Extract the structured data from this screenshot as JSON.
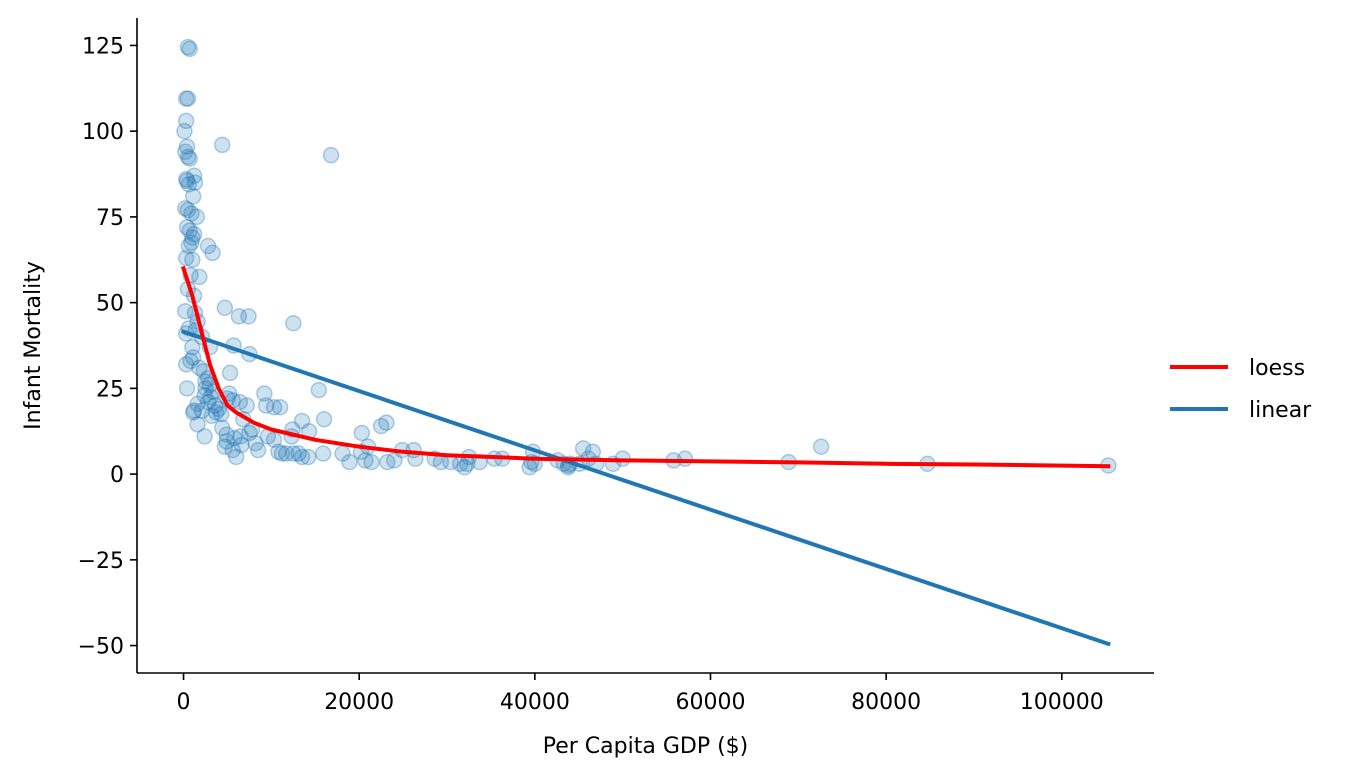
{
  "chart_data": {
    "type": "scatter",
    "xlabel": "Per Capita GDP ($)",
    "ylabel": "Infant Mortality",
    "xlim": [
      -5300,
      110500
    ],
    "ylim": [
      -58,
      133
    ],
    "xticks": [
      0,
      20000,
      40000,
      60000,
      80000,
      100000
    ],
    "xtick_labels": [
      "0",
      "20000",
      "40000",
      "60000",
      "80000",
      "100000"
    ],
    "yticks": [
      -50,
      -25,
      0,
      25,
      50,
      75,
      100,
      125
    ],
    "ytick_labels": [
      "−50",
      "−25",
      "0",
      "25",
      "50",
      "75",
      "100",
      "125"
    ],
    "grid": false,
    "legend_position": "right",
    "colors": {
      "points": "#1f77b4",
      "loess": "#ff0000",
      "linear": "#1f77b4"
    },
    "points": [
      [
        500,
        124.5
      ],
      [
        700,
        124
      ],
      [
        300,
        109.5
      ],
      [
        500,
        109.5
      ],
      [
        300,
        103
      ],
      [
        100,
        100
      ],
      [
        400,
        95.5
      ],
      [
        200,
        94
      ],
      [
        500,
        92.5
      ],
      [
        700,
        92
      ],
      [
        4400,
        96
      ],
      [
        16800,
        93
      ],
      [
        1200,
        87
      ],
      [
        300,
        86
      ],
      [
        400,
        85.5
      ],
      [
        1300,
        85
      ],
      [
        600,
        84.5
      ],
      [
        1100,
        81
      ],
      [
        200,
        77.5
      ],
      [
        500,
        77
      ],
      [
        900,
        76
      ],
      [
        1500,
        75
      ],
      [
        400,
        72
      ],
      [
        700,
        71
      ],
      [
        1200,
        70
      ],
      [
        1000,
        69
      ],
      [
        900,
        67.5
      ],
      [
        600,
        66.5
      ],
      [
        2800,
        66.5
      ],
      [
        3300,
        64.5
      ],
      [
        300,
        63
      ],
      [
        1000,
        62.5
      ],
      [
        800,
        58
      ],
      [
        1800,
        57.5
      ],
      [
        500,
        54
      ],
      [
        1200,
        52
      ],
      [
        4700,
        48.5
      ],
      [
        200,
        47.5
      ],
      [
        1300,
        47
      ],
      [
        6300,
        46
      ],
      [
        7400,
        46
      ],
      [
        12500,
        44
      ],
      [
        1600,
        44.5
      ],
      [
        1400,
        42
      ],
      [
        300,
        41
      ],
      [
        600,
        42.5
      ],
      [
        2100,
        40
      ],
      [
        1000,
        37
      ],
      [
        5700,
        37.5
      ],
      [
        3000,
        37
      ],
      [
        7500,
        35
      ],
      [
        1100,
        34
      ],
      [
        800,
        33
      ],
      [
        300,
        32
      ],
      [
        1800,
        31
      ],
      [
        2300,
        30
      ],
      [
        5300,
        29.5
      ],
      [
        2800,
        28
      ],
      [
        2500,
        27
      ],
      [
        3000,
        26
      ],
      [
        2500,
        25
      ],
      [
        400,
        25
      ],
      [
        15400,
        24.5
      ],
      [
        3400,
        24
      ],
      [
        5200,
        23.5
      ],
      [
        9200,
        23.5
      ],
      [
        2400,
        23
      ],
      [
        3100,
        22.5
      ],
      [
        5000,
        22
      ],
      [
        5600,
        21.5
      ],
      [
        2800,
        21
      ],
      [
        6400,
        21
      ],
      [
        1600,
        20.5
      ],
      [
        3600,
        20
      ],
      [
        7200,
        20
      ],
      [
        9400,
        20
      ],
      [
        10300,
        19.5
      ],
      [
        11000,
        19.5
      ],
      [
        4000,
        19
      ],
      [
        2100,
        18.5
      ],
      [
        1200,
        18.5
      ],
      [
        1100,
        18
      ],
      [
        3700,
        18
      ],
      [
        4300,
        17.5
      ],
      [
        3200,
        17
      ],
      [
        6800,
        16
      ],
      [
        16000,
        16
      ],
      [
        13500,
        15.5
      ],
      [
        23100,
        15
      ],
      [
        22500,
        14
      ],
      [
        1600,
        14.5
      ],
      [
        4400,
        13.5
      ],
      [
        7800,
        13
      ],
      [
        12400,
        13
      ],
      [
        14300,
        12.5
      ],
      [
        20300,
        12
      ],
      [
        7500,
        12
      ],
      [
        4900,
        11.5
      ],
      [
        6500,
        11
      ],
      [
        2400,
        11
      ],
      [
        9600,
        11
      ],
      [
        12300,
        11
      ],
      [
        5800,
        10.5
      ],
      [
        10300,
        10
      ],
      [
        4900,
        9.5
      ],
      [
        8200,
        9
      ],
      [
        6600,
        8.5
      ],
      [
        21000,
        8
      ],
      [
        4700,
        8
      ],
      [
        72600,
        8
      ],
      [
        5600,
        7
      ],
      [
        8500,
        7
      ],
      [
        24900,
        7
      ],
      [
        10800,
        6.5
      ],
      [
        26200,
        7
      ],
      [
        45500,
        7.5
      ],
      [
        39800,
        6.5
      ],
      [
        46600,
        6.5
      ],
      [
        11700,
        6
      ],
      [
        11200,
        6
      ],
      [
        12500,
        6
      ],
      [
        13100,
        6
      ],
      [
        15900,
        6
      ],
      [
        18100,
        6
      ],
      [
        20200,
        6.5
      ],
      [
        6000,
        5
      ],
      [
        13500,
        5
      ],
      [
        14200,
        5
      ],
      [
        32500,
        5
      ],
      [
        35400,
        4.5
      ],
      [
        36300,
        4.5
      ],
      [
        28600,
        4.5
      ],
      [
        26400,
        4.5
      ],
      [
        42600,
        4
      ],
      [
        46100,
        4.5
      ],
      [
        50000,
        4.5
      ],
      [
        55800,
        4
      ],
      [
        57100,
        4.5
      ],
      [
        20700,
        4
      ],
      [
        24000,
        4
      ],
      [
        30400,
        3.5
      ],
      [
        33700,
        3.5
      ],
      [
        29300,
        3.5
      ],
      [
        21400,
        3.5
      ],
      [
        23200,
        3.5
      ],
      [
        18900,
        3.5
      ],
      [
        39600,
        3.5
      ],
      [
        44000,
        3
      ],
      [
        45100,
        3
      ],
      [
        47000,
        3
      ],
      [
        48900,
        3
      ],
      [
        68900,
        3.5
      ],
      [
        84700,
        3
      ],
      [
        32300,
        3
      ],
      [
        43300,
        3
      ],
      [
        43800,
        2.5
      ],
      [
        39400,
        2
      ],
      [
        43800,
        2
      ],
      [
        32000,
        2
      ],
      [
        105300,
        2.5
      ],
      [
        40000,
        3
      ],
      [
        31500,
        3
      ]
    ],
    "series": [
      {
        "name": "loess",
        "x": [
          0,
          1000,
          2000,
          3000,
          4000,
          5000,
          6000,
          8000,
          10000,
          15000,
          20000,
          25000,
          30000,
          40000,
          50000,
          60000,
          70000,
          80000,
          90000,
          105300
        ],
        "y": [
          60,
          52,
          42,
          32,
          25,
          20,
          18,
          15,
          13,
          10,
          8,
          6.5,
          5.5,
          4.5,
          4,
          3.7,
          3.4,
          3,
          2.8,
          2.3
        ]
      },
      {
        "name": "linear",
        "x": [
          0,
          105300
        ],
        "y": [
          41.5,
          -49.5
        ]
      }
    ]
  }
}
